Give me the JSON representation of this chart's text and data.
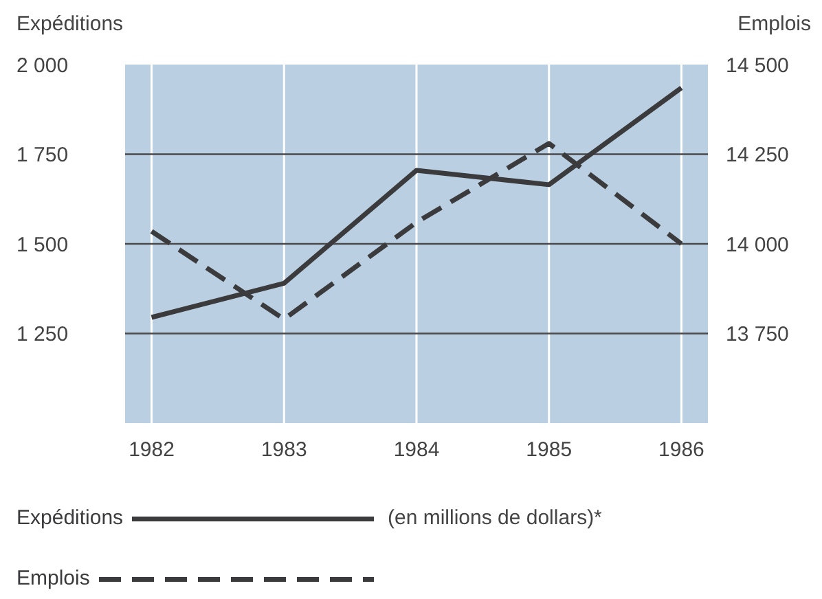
{
  "chart_data": {
    "type": "line",
    "ylabel": "Expéditions",
    "y2label": "Emplois",
    "categories": [
      "1982",
      "1983",
      "1984",
      "1985",
      "1986"
    ],
    "series": [
      {
        "name": "Expéditions",
        "color": "#3b3b3d",
        "values": [
          1295,
          1390,
          1705,
          1665,
          1935
        ],
        "line_style": "solid"
      },
      {
        "name": "Emplois",
        "color": "#3b3b3d",
        "values": [
          14035,
          13790,
          14060,
          14280,
          14000
        ],
        "axis": "y2",
        "line_style": "dashed"
      }
    ],
    "ylim": [
      1000,
      2000
    ],
    "yticks": [
      {
        "value": 1250,
        "label": "1 250"
      },
      {
        "value": 1500,
        "label": "1 500"
      },
      {
        "value": 1750,
        "label": "1 750"
      },
      {
        "value": 2000,
        "label": "2 000"
      }
    ],
    "y2lim": [
      13500,
      14500
    ],
    "y2ticks": [
      {
        "value": 13750,
        "label": "13 750"
      },
      {
        "value": 14000,
        "label": "14 000"
      },
      {
        "value": 14250,
        "label": "14 250"
      },
      {
        "value": 14500,
        "label": "14 500"
      }
    ],
    "grid": true,
    "legend": "bottom",
    "marker": "none",
    "annotations": [
      "(en millions de dollars)*"
    ]
  }
}
